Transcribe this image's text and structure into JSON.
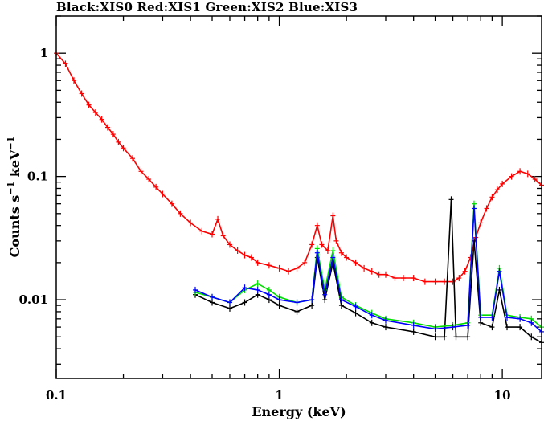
{
  "title": "Black:XIS0  Red:XIS1  Green:XIS2  Blue:XIS3",
  "chart_data": {
    "type": "scatter",
    "title": "Black:XIS0  Red:XIS1  Green:XIS2  Blue:XIS3",
    "xlabel": "Energy (keV)",
    "ylabel_parts": {
      "base": "Counts s",
      "exp1": "−1",
      "mid": " keV",
      "exp2": "−1"
    },
    "xscale": "log",
    "yscale": "log",
    "xlim": [
      0.1,
      15
    ],
    "ylim": [
      0.0023,
      2.0
    ],
    "x_ticks": [
      {
        "value": 0.1,
        "label": "0.1"
      },
      {
        "value": 1,
        "label": "1"
      },
      {
        "value": 10,
        "label": "10"
      }
    ],
    "y_ticks": [
      {
        "value": 0.01,
        "label": "0.01"
      },
      {
        "value": 0.1,
        "label": "0.1"
      },
      {
        "value": 1,
        "label": "1"
      }
    ],
    "series": [
      {
        "name": "XIS1",
        "color": "#ff0000",
        "points": [
          [
            0.1,
            1.0
          ],
          [
            0.11,
            0.82
          ],
          [
            0.12,
            0.6
          ],
          [
            0.13,
            0.47
          ],
          [
            0.14,
            0.38
          ],
          [
            0.15,
            0.33
          ],
          [
            0.16,
            0.29
          ],
          [
            0.17,
            0.25
          ],
          [
            0.18,
            0.22
          ],
          [
            0.19,
            0.19
          ],
          [
            0.2,
            0.17
          ],
          [
            0.22,
            0.14
          ],
          [
            0.24,
            0.11
          ],
          [
            0.26,
            0.095
          ],
          [
            0.28,
            0.082
          ],
          [
            0.3,
            0.072
          ],
          [
            0.33,
            0.06
          ],
          [
            0.36,
            0.05
          ],
          [
            0.4,
            0.042
          ],
          [
            0.45,
            0.036
          ],
          [
            0.5,
            0.034
          ],
          [
            0.53,
            0.045
          ],
          [
            0.56,
            0.033
          ],
          [
            0.6,
            0.028
          ],
          [
            0.65,
            0.025
          ],
          [
            0.7,
            0.023
          ],
          [
            0.75,
            0.022
          ],
          [
            0.8,
            0.02
          ],
          [
            0.9,
            0.019
          ],
          [
            1.0,
            0.018
          ],
          [
            1.1,
            0.017
          ],
          [
            1.2,
            0.018
          ],
          [
            1.3,
            0.02
          ],
          [
            1.4,
            0.028
          ],
          [
            1.48,
            0.04
          ],
          [
            1.55,
            0.028
          ],
          [
            1.65,
            0.025
          ],
          [
            1.74,
            0.048
          ],
          [
            1.8,
            0.03
          ],
          [
            1.9,
            0.024
          ],
          [
            2.0,
            0.022
          ],
          [
            2.2,
            0.02
          ],
          [
            2.4,
            0.018
          ],
          [
            2.6,
            0.017
          ],
          [
            2.8,
            0.016
          ],
          [
            3.0,
            0.016
          ],
          [
            3.3,
            0.015
          ],
          [
            3.6,
            0.015
          ],
          [
            4.0,
            0.015
          ],
          [
            4.5,
            0.014
          ],
          [
            5.0,
            0.014
          ],
          [
            5.5,
            0.014
          ],
          [
            6.0,
            0.014
          ],
          [
            6.4,
            0.015
          ],
          [
            6.8,
            0.017
          ],
          [
            7.2,
            0.022
          ],
          [
            7.6,
            0.032
          ],
          [
            8.0,
            0.042
          ],
          [
            8.5,
            0.055
          ],
          [
            9.0,
            0.068
          ],
          [
            9.5,
            0.078
          ],
          [
            10.0,
            0.087
          ],
          [
            11.0,
            0.1
          ],
          [
            12.0,
            0.11
          ],
          [
            13.0,
            0.105
          ],
          [
            14.0,
            0.095
          ],
          [
            15.0,
            0.085
          ]
        ]
      },
      {
        "name": "XIS0",
        "color": "#000000",
        "points": [
          [
            0.42,
            0.011
          ],
          [
            0.5,
            0.0095
          ],
          [
            0.6,
            0.0085
          ],
          [
            0.7,
            0.0095
          ],
          [
            0.8,
            0.011
          ],
          [
            0.9,
            0.01
          ],
          [
            1.0,
            0.009
          ],
          [
            1.2,
            0.008
          ],
          [
            1.4,
            0.009
          ],
          [
            1.48,
            0.022
          ],
          [
            1.6,
            0.01
          ],
          [
            1.74,
            0.02
          ],
          [
            1.9,
            0.009
          ],
          [
            2.2,
            0.0078
          ],
          [
            2.6,
            0.0065
          ],
          [
            3.0,
            0.006
          ],
          [
            4.0,
            0.0055
          ],
          [
            5.0,
            0.005
          ],
          [
            5.5,
            0.005
          ],
          [
            5.9,
            0.065
          ],
          [
            6.2,
            0.005
          ],
          [
            7.0,
            0.005
          ],
          [
            7.47,
            0.03
          ],
          [
            8.0,
            0.0065
          ],
          [
            9.0,
            0.006
          ],
          [
            9.7,
            0.012
          ],
          [
            10.5,
            0.006
          ],
          [
            12.0,
            0.006
          ],
          [
            13.5,
            0.005
          ],
          [
            15.0,
            0.0045
          ]
        ]
      },
      {
        "name": "XIS2",
        "color": "#00dd00",
        "points": [
          [
            0.42,
            0.0115
          ],
          [
            0.5,
            0.0105
          ],
          [
            0.6,
            0.0095
          ],
          [
            0.7,
            0.012
          ],
          [
            0.8,
            0.0135
          ],
          [
            0.9,
            0.012
          ],
          [
            1.0,
            0.0105
          ],
          [
            1.2,
            0.0095
          ],
          [
            1.4,
            0.01
          ],
          [
            1.48,
            0.026
          ],
          [
            1.6,
            0.012
          ],
          [
            1.74,
            0.025
          ],
          [
            1.9,
            0.0105
          ],
          [
            2.2,
            0.009
          ],
          [
            2.6,
            0.0078
          ],
          [
            3.0,
            0.007
          ],
          [
            4.0,
            0.0065
          ],
          [
            5.0,
            0.006
          ],
          [
            6.0,
            0.0062
          ],
          [
            7.0,
            0.0065
          ],
          [
            7.47,
            0.06
          ],
          [
            8.0,
            0.0075
          ],
          [
            9.0,
            0.0075
          ],
          [
            9.7,
            0.018
          ],
          [
            10.5,
            0.0075
          ],
          [
            12.0,
            0.0072
          ],
          [
            13.5,
            0.007
          ],
          [
            15.0,
            0.006
          ]
        ]
      },
      {
        "name": "XIS3",
        "color": "#0000ff",
        "points": [
          [
            0.42,
            0.012
          ],
          [
            0.5,
            0.0105
          ],
          [
            0.6,
            0.0095
          ],
          [
            0.7,
            0.0125
          ],
          [
            0.8,
            0.012
          ],
          [
            0.9,
            0.011
          ],
          [
            1.0,
            0.01
          ],
          [
            1.2,
            0.0095
          ],
          [
            1.4,
            0.01
          ],
          [
            1.48,
            0.024
          ],
          [
            1.6,
            0.011
          ],
          [
            1.74,
            0.022
          ],
          [
            1.9,
            0.01
          ],
          [
            2.2,
            0.0088
          ],
          [
            2.6,
            0.0075
          ],
          [
            3.0,
            0.0068
          ],
          [
            4.0,
            0.0062
          ],
          [
            5.0,
            0.0058
          ],
          [
            6.0,
            0.006
          ],
          [
            7.0,
            0.0062
          ],
          [
            7.47,
            0.055
          ],
          [
            8.0,
            0.0072
          ],
          [
            9.0,
            0.0072
          ],
          [
            9.7,
            0.017
          ],
          [
            10.5,
            0.0072
          ],
          [
            12.0,
            0.007
          ],
          [
            13.5,
            0.0065
          ],
          [
            15.0,
            0.0055
          ]
        ]
      }
    ]
  }
}
